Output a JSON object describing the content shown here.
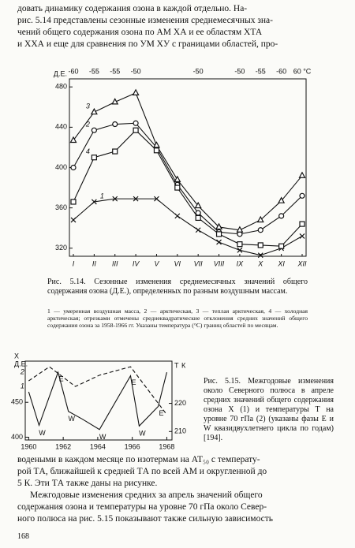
{
  "text_top": [
    "довать динамику содержания озона в каждой отдельно. На-",
    "рис. 5.14 представлены сезонные изменения среднемесячных зна-",
    "чений общего содержания озона по АМ XА и ее областям XТА",
    "и XХА и еще для сравнения по УМ XУ с границами областей, про-"
  ],
  "chart_data": [
    {
      "type": "line",
      "categories": [
        "I",
        "II",
        "III",
        "IV",
        "V",
        "VI",
        "VII",
        "VIII",
        "IX",
        "X",
        "XI",
        "XII"
      ],
      "top_categories": [
        "-60",
        "-55",
        "-55",
        "-50",
        null,
        null,
        "-50",
        null,
        "-50",
        "-55",
        "-60",
        "60 °С"
      ],
      "ylabel": "Д.Е.",
      "ylim": [
        312,
        488
      ],
      "yticks": [
        320,
        360,
        400,
        440,
        480
      ],
      "series": [
        {
          "name": "1",
          "color": "#111",
          "marker": "x",
          "values": [
            348,
            366,
            369,
            369,
            369,
            352,
            338,
            326,
            318,
            313,
            320,
            332
          ]
        },
        {
          "name": "2",
          "color": "#111",
          "marker": "circle",
          "values": [
            400,
            437,
            443,
            444,
            420,
            383,
            355,
            336,
            334,
            338,
            352,
            372
          ]
        },
        {
          "name": "3",
          "color": "#111",
          "marker": "triangle",
          "values": [
            427,
            455,
            465,
            474,
            422,
            388,
            362,
            341,
            338,
            348,
            367,
            392
          ]
        },
        {
          "name": "4",
          "color": "#111",
          "marker": "square",
          "values": [
            366,
            410,
            416,
            437,
            417,
            380,
            350,
            334,
            324,
            323,
            322,
            344
          ]
        }
      ],
      "caption": "Рис. 5.14. Сезонные изменения среднемесячных значений общего содержания озона (Д.Е.), определенных по разным воздушным массам.",
      "note": "1 — умеренная воздушная масса, 2 — арктическая, 3 — теплая арктическая, 4 — холодная арктическая; отрезками отмечены среднеквадратические отклонения средних значений общего содержания озона за 1958-1966 гг. Указаны температура (°С) границ областей по месяцам."
    },
    {
      "type": "line",
      "xlim": [
        1959.8,
        1968.3
      ],
      "xticks": [
        1960,
        1962,
        1964,
        1966,
        1968
      ],
      "ylabel": [
        "X",
        "Д.Е."
      ],
      "ylim": [
        396,
        509
      ],
      "yticks": [
        400,
        450
      ],
      "y2label": [
        "T",
        "К"
      ],
      "y2lim": [
        207,
        235
      ],
      "y2ticks": [
        210,
        220
      ],
      "series": [
        {
          "name": "1",
          "color": "#111",
          "dash": false,
          "x": [
            1960.0,
            1960.6,
            1961.7,
            1962.3,
            1963.1,
            1964.1,
            1965.9,
            1966.4,
            1967.5,
            1968.0
          ],
          "values": [
            465,
            417,
            493,
            437,
            426,
            411,
            488,
            416,
            444,
            493
          ],
          "point_labels": [
            null,
            "W",
            "E",
            "W",
            null,
            "W",
            "E",
            "W",
            "E",
            null
          ]
        },
        {
          "name": "2",
          "color": "#111",
          "dash": true,
          "axis": "y2",
          "x": [
            1960.0,
            1961.2,
            1962.7,
            1964.1,
            1965.9,
            1968.0
          ],
          "values": [
            228,
            233,
            226,
            230,
            233,
            216
          ]
        }
      ],
      "caption": "Рис. 5.15. Межгодовые изменения около Северного полюса в апреле средних значений общего содержания озона X (1) и температуры T на уровне 70 гПа (2) (указаны фазы E и W квазидвухлетнего цикла по годам) [194]."
    }
  ],
  "text_bottom": [
    "водеными в каждом месяце по изотермам на АТ₅₀ с температу-",
    "рой TА, ближайшей к средней TА по всей АМ и округленной до",
    "5 К. Эти TА также даны на рисунке.",
    "Межгодовые изменения средних за апрель значений общего",
    "содержания озона и температуры на уровне 70 гПа около Север-",
    "ного полюса на рис. 5.15 показывают также сильную зависимость"
  ],
  "page_number": "168"
}
